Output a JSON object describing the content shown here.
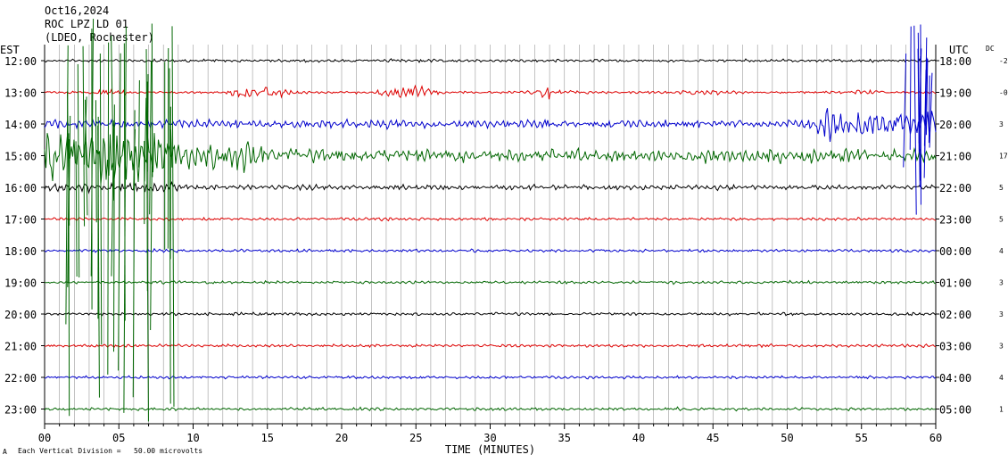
{
  "header": {
    "date": "Oct16,2024",
    "station": "ROC LPZ LD 01",
    "network": "(LDEO, Rochester)"
  },
  "footer": {
    "scale_text": "Each Vertical Division =   50.00 microvolts",
    "corner_mark": "A"
  },
  "chart_data": {
    "type": "line",
    "xlabel": "TIME (MINUTES)",
    "left_axis_label": "EST",
    "right_axis_label": "UTC",
    "dc_label": "DC",
    "xlim": [
      0,
      60
    ],
    "x_ticks": [
      "00",
      "05",
      "10",
      "15",
      "20",
      "25",
      "30",
      "35",
      "40",
      "45",
      "50",
      "55",
      "60"
    ],
    "grid": "vertical every minute",
    "trace_colors": [
      "#000000",
      "#dd0000",
      "#0000cc",
      "#006600"
    ],
    "rows": [
      {
        "est": "12:00",
        "utc": "18:00",
        "dc": "-2",
        "color": "#000000",
        "activity": "low"
      },
      {
        "est": "13:00",
        "utc": "19:00",
        "dc": "-0",
        "color": "#dd0000",
        "activity": "medium"
      },
      {
        "est": "14:00",
        "utc": "20:00",
        "dc": "3",
        "color": "#0000cc",
        "activity": "high"
      },
      {
        "est": "15:00",
        "utc": "21:00",
        "dc": "17",
        "color": "#006600",
        "activity": "very-high"
      },
      {
        "est": "16:00",
        "utc": "22:00",
        "dc": "5",
        "color": "#000000",
        "activity": "medium"
      },
      {
        "est": "17:00",
        "utc": "23:00",
        "dc": "5",
        "color": "#dd0000",
        "activity": "low"
      },
      {
        "est": "18:00",
        "utc": "00:00",
        "dc": "4",
        "color": "#0000cc",
        "activity": "low"
      },
      {
        "est": "19:00",
        "utc": "01:00",
        "dc": "3",
        "color": "#006600",
        "activity": "low"
      },
      {
        "est": "20:00",
        "utc": "02:00",
        "dc": "3",
        "color": "#000000",
        "activity": "low"
      },
      {
        "est": "21:00",
        "utc": "03:00",
        "dc": "3",
        "color": "#dd0000",
        "activity": "low"
      },
      {
        "est": "22:00",
        "utc": "04:00",
        "dc": "4",
        "color": "#0000cc",
        "activity": "low"
      },
      {
        "est": "23:00",
        "utc": "05:00",
        "dc": "1",
        "color": "#006600",
        "activity": "low"
      }
    ]
  }
}
